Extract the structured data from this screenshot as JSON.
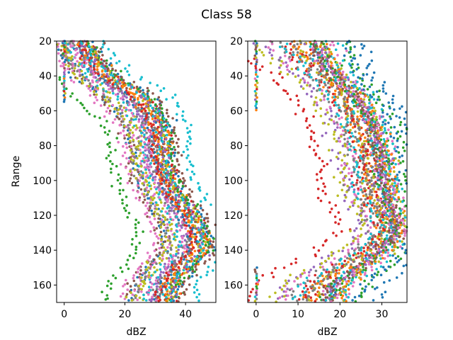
{
  "figure": {
    "title": "Class 58"
  },
  "chart_data": [
    {
      "type": "scatter",
      "title": "",
      "xlabel": "dBZ",
      "ylabel": "Range",
      "xlim": [
        -2.5,
        50
      ],
      "ylim": [
        170,
        20
      ],
      "y_inverted": true,
      "grid": false,
      "x_ticks": [
        0,
        20,
        40
      ],
      "y_ticks": [
        20,
        40,
        60,
        80,
        100,
        120,
        140,
        160
      ],
      "palette": [
        "#1f77b4",
        "#ff7f0e",
        "#2ca02c",
        "#d62728",
        "#9467bd",
        "#8c564b",
        "#e377c2",
        "#7f7f7f",
        "#bcbd22",
        "#17becf"
      ],
      "series_count": 30,
      "band": {
        "description_points_range": [
          20,
          30,
          40,
          50,
          60,
          70,
          80,
          90,
          100,
          110,
          120,
          130,
          140,
          150,
          160,
          170
        ],
        "center_dBZ": [
          5,
          8,
          13,
          22,
          27,
          30,
          31,
          31,
          33,
          36,
          40,
          43,
          43,
          37,
          33,
          32
        ],
        "spread_dBZ": [
          5,
          6,
          7,
          9,
          8,
          7,
          7,
          7,
          7,
          7,
          8,
          8,
          9,
          8,
          8,
          8
        ]
      },
      "zero_cluster": {
        "x": 0,
        "range_from": 20,
        "range_to": 55
      }
    },
    {
      "type": "scatter",
      "title": "",
      "xlabel": "dBZ",
      "ylabel": "",
      "xlim": [
        -2,
        36
      ],
      "ylim": [
        170,
        20
      ],
      "y_inverted": true,
      "grid": false,
      "x_ticks": [
        0,
        10,
        20,
        30
      ],
      "y_ticks": [
        20,
        40,
        60,
        80,
        100,
        120,
        140,
        160
      ],
      "palette": [
        "#1f77b4",
        "#ff7f0e",
        "#2ca02c",
        "#d62728",
        "#9467bd",
        "#8c564b",
        "#e377c2",
        "#7f7f7f",
        "#bcbd22",
        "#17becf"
      ],
      "series_count": 30,
      "band": {
        "description_points_range": [
          20,
          30,
          40,
          50,
          60,
          70,
          80,
          90,
          100,
          110,
          120,
          130,
          140,
          150,
          160,
          170
        ],
        "center_dBZ": [
          10,
          12,
          16,
          20,
          23,
          25,
          26,
          27,
          27,
          28,
          30,
          31,
          27,
          21,
          15,
          13
        ],
        "spread_dBZ": [
          10,
          8,
          7,
          7,
          7,
          7,
          7,
          7,
          7,
          7,
          6,
          6,
          7,
          8,
          9,
          9
        ]
      },
      "zero_cluster": {
        "x": 0,
        "range_from": 20,
        "range_to": 60
      },
      "zero_cluster_2": {
        "x": 0,
        "range_from": 150,
        "range_to": 170
      }
    }
  ]
}
